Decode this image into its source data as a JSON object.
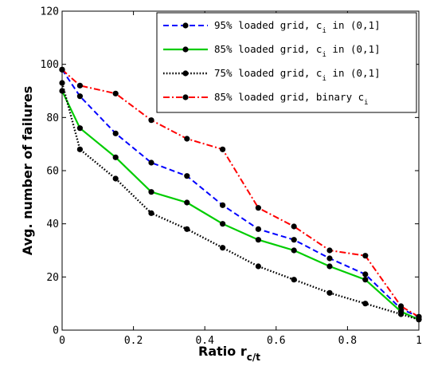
{
  "chart_data": {
    "type": "line",
    "xlabel": "Ratio r",
    "xlabel_sub": "c/t",
    "ylabel": "Avg. number of failures",
    "xlim": [
      0,
      1
    ],
    "ylim": [
      0,
      120
    ],
    "xticks": [
      0,
      0.2,
      0.4,
      0.6,
      0.8,
      1
    ],
    "xtick_labels": [
      "0",
      "0.2",
      "0.4",
      "0.6",
      "0.8",
      "1"
    ],
    "yticks": [
      0,
      20,
      40,
      60,
      80,
      100,
      120
    ],
    "ytick_labels": [
      "0",
      "20",
      "40",
      "60",
      "80",
      "100",
      "120"
    ],
    "grid": false,
    "legend_position": "top-right",
    "series": [
      {
        "name": "95% loaded grid, c i in (0,1]",
        "legend_main": "95% loaded grid, c",
        "legend_sub": "i",
        "legend_tail": " in (0,1]",
        "color": "#0000ff",
        "style": "dashed",
        "x": [
          0,
          0.05,
          0.15,
          0.25,
          0.35,
          0.45,
          0.55,
          0.65,
          0.75,
          0.85,
          0.95,
          1
        ],
        "y": [
          98,
          88,
          74,
          63,
          58,
          47,
          38,
          34,
          27,
          21,
          8,
          5
        ]
      },
      {
        "name": "85% loaded grid, c i in (0,1]",
        "legend_main": "85% loaded grid, c",
        "legend_sub": "i",
        "legend_tail": " in (0,1]",
        "color": "#00cc00",
        "style": "solid",
        "x": [
          0,
          0.05,
          0.15,
          0.25,
          0.35,
          0.45,
          0.55,
          0.65,
          0.75,
          0.85,
          0.95,
          1
        ],
        "y": [
          90,
          76,
          65,
          52,
          48,
          40,
          34,
          30,
          24,
          19,
          7,
          4
        ]
      },
      {
        "name": "75% loaded grid, c i in (0,1]",
        "legend_main": "75% loaded grid, c",
        "legend_sub": "i",
        "legend_tail": " in (0,1]",
        "color": "#000000",
        "style": "dotted",
        "x": [
          0,
          0.05,
          0.15,
          0.25,
          0.35,
          0.45,
          0.55,
          0.65,
          0.75,
          0.85,
          0.95,
          1
        ],
        "y": [
          93,
          68,
          57,
          44,
          38,
          31,
          24,
          19,
          14,
          10,
          6,
          4
        ]
      },
      {
        "name": "85% loaded grid, binary c i",
        "legend_main": "85% loaded grid, binary c",
        "legend_sub": "i",
        "legend_tail": "",
        "color": "#ff0000",
        "style": "dashdot",
        "x": [
          0,
          0.05,
          0.15,
          0.25,
          0.35,
          0.45,
          0.55,
          0.65,
          0.75,
          0.85,
          0.95,
          1
        ],
        "y": [
          98,
          92,
          89,
          79,
          72,
          68,
          46,
          39,
          30,
          28,
          9,
          5
        ]
      }
    ]
  }
}
